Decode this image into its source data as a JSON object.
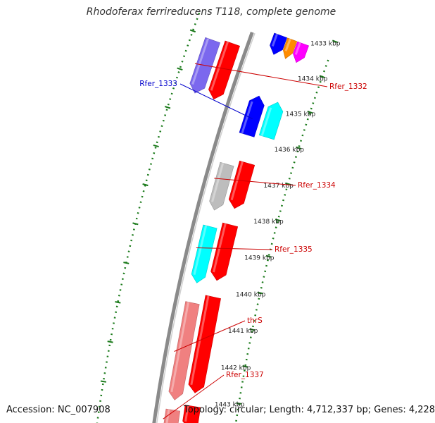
{
  "title": "Rhodoferax ferrireducens T118, complete genome",
  "footer": {
    "accession": "Accession: NC_007908",
    "topology": "Topology: circular; Length: 4,712,337 bp; Genes: 4,228"
  },
  "colors": {
    "backbone": "#8a8a8a",
    "ticks": "#1a7a1a",
    "label_forward": "#cc0000",
    "label_reverse": "#0000cc"
  },
  "ruler": {
    "ticks": [
      {
        "label": "1433 kbp"
      },
      {
        "label": "1434 kbp"
      },
      {
        "label": "1435 kbp"
      },
      {
        "label": "1436 kbp"
      },
      {
        "label": "1437 kbp"
      },
      {
        "label": "1438 kbp"
      },
      {
        "label": "1439 kbp"
      },
      {
        "label": "1440 kbp"
      },
      {
        "label": "1441 kbp"
      },
      {
        "label": "1442 kbp"
      },
      {
        "label": "1443 kbp"
      }
    ]
  },
  "gene_labels": [
    {
      "text": "Rfer_1333",
      "color": "#0000cc"
    },
    {
      "text": "Rfer_1332",
      "color": "#cc0000"
    },
    {
      "text": "Rfer_1334",
      "color": "#cc0000"
    },
    {
      "text": "Rfer_1335",
      "color": "#cc0000"
    },
    {
      "text": "thrS",
      "color": "#cc0000"
    },
    {
      "text": "Rfer_1337",
      "color": "#cc0000"
    }
  ]
}
